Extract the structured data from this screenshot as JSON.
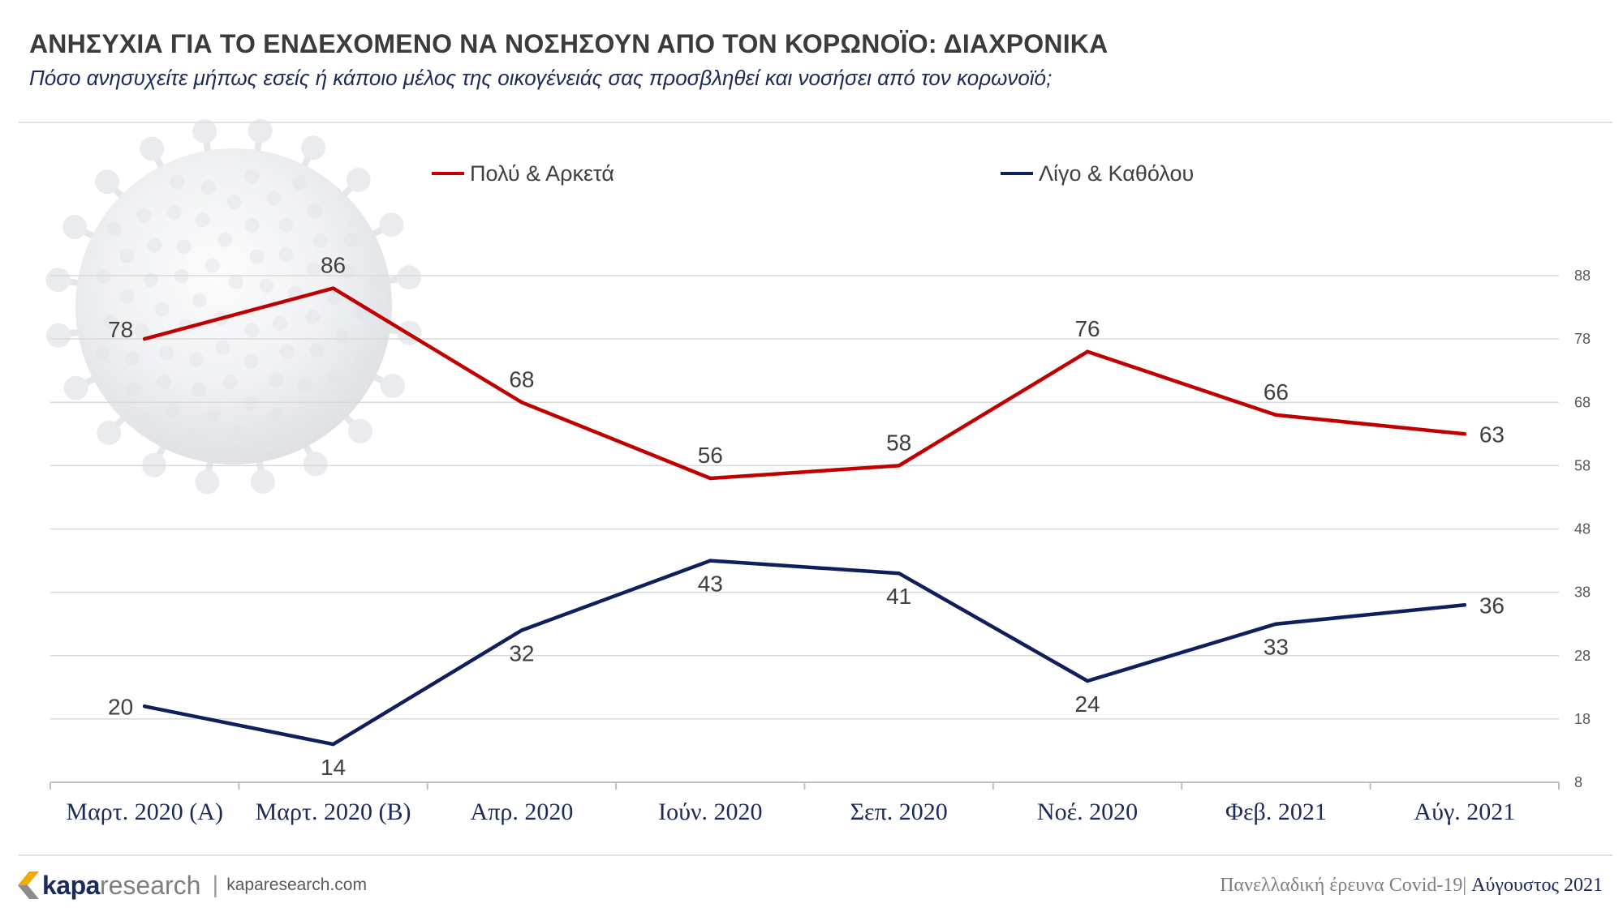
{
  "chart_data": {
    "type": "line",
    "title": "ΑΝΗΣΥΧΙΑ ΓΙΑ ΤΟ ΕΝΔΕΧΟΜΕΝΟ ΝΑ ΝΟΣΗΣΟΥΝ ΑΠΟ ΤΟΝ ΚΟΡΩΝΟΪΟ: ΔΙΑΧΡΟΝΙΚΑ",
    "subtitle": "Πόσο ανησυχείτε μήπως εσείς ή κάποιο μέλος της οικογένειάς σας προσβληθεί και νοσήσει από τον κορωνοϊό;",
    "xlabel": "",
    "ylabel": "",
    "categories": [
      "Μαρτ. 2020 (Α)",
      "Μαρτ. 2020 (Β)",
      "Απρ. 2020",
      "Ιούν. 2020",
      "Σεπ. 2020",
      "Νοέ. 2020",
      "Φεβ. 2021",
      "Αύγ. 2021"
    ],
    "series": [
      {
        "name": "Πολύ & Αρκετά",
        "color": "#c00000",
        "values": [
          78,
          86,
          68,
          56,
          58,
          76,
          66,
          63
        ]
      },
      {
        "name": "Λίγο & Καθόλου",
        "color": "#0e1f5b",
        "values": [
          20,
          14,
          32,
          43,
          41,
          24,
          33,
          36
        ]
      }
    ],
    "ylim": [
      8,
      88
    ],
    "y_ticks": [
      8,
      18,
      28,
      38,
      48,
      58,
      68,
      78,
      88
    ],
    "y_axis_side": "right",
    "grid": true,
    "legend": "top-center",
    "data_labels": true,
    "colors": {
      "x_tick_labels": "#1b2a57",
      "y_tick_labels": "#595959",
      "data_labels": "#404040",
      "grid": "#d9d9d9"
    }
  },
  "footer": {
    "logo": {
      "mark": "kapa-logo-mark-icon",
      "brand_bold": "kapa",
      "brand_light": "research"
    },
    "separator": "|",
    "website": "kaparesearch.com",
    "survey_label": "Πανελλαδική έρευνα Covid-19|",
    "survey_date": "Αύγουστος 2021"
  },
  "decoration": {
    "background_image": "coronavirus-icon"
  }
}
